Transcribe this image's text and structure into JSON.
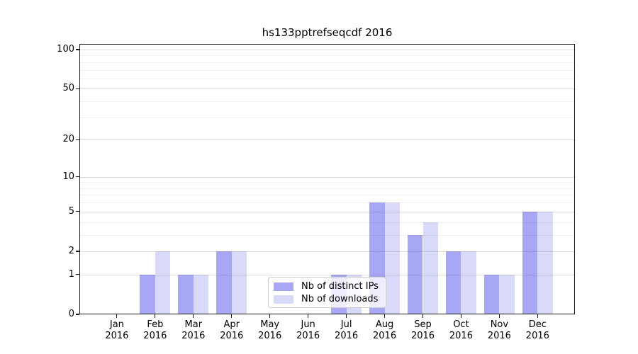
{
  "figure": {
    "background": "#ffffff"
  },
  "chart_data": {
    "type": "bar",
    "title": "hs133pptrefseqcdf 2016",
    "categories": [
      "Jan",
      "Feb",
      "Mar",
      "Apr",
      "May",
      "Jun",
      "Jul",
      "Aug",
      "Sep",
      "Oct",
      "Nov",
      "Dec"
    ],
    "category_year_label": "2016",
    "series": [
      {
        "name": "Nb of distinct IPs",
        "color": "#a7a7f6",
        "values": [
          0,
          1,
          1,
          2,
          0,
          0,
          1,
          6,
          3,
          2,
          1,
          5
        ]
      },
      {
        "name": "Nb of downloads",
        "color": "#d9d9fa",
        "values": [
          0,
          2,
          1,
          2,
          0,
          0,
          1,
          6,
          4,
          2,
          1,
          5
        ]
      }
    ],
    "xlabel": "",
    "ylabel": "",
    "ylim": [
      0,
      100
    ],
    "y_scale": "log-like (position proportional to log10(1+value))",
    "y_major_ticks": [
      0,
      1,
      2,
      5,
      10,
      20,
      50,
      100
    ],
    "y_minor_gridlines": [
      3,
      4,
      6,
      7,
      8,
      9,
      30,
      40,
      60,
      70,
      80,
      90
    ],
    "grid": "horizontal, major and minor, drawn over bars",
    "legend": {
      "position": "inside bottom-center",
      "entries": [
        "Nb of distinct IPs",
        "Nb of downloads"
      ]
    }
  },
  "colors": {
    "bar_distinct_ips": "#a7a7f6",
    "bar_downloads": "#d9d9fa",
    "grid_major": "rgba(0,0,0,0.13)",
    "grid_minor": "rgba(0,0,0,0.06)",
    "axis": "#1a1a1a",
    "text": "#000000",
    "legend_border": "#cccccc",
    "legend_background": "rgba(255,255,255,0.8)"
  }
}
